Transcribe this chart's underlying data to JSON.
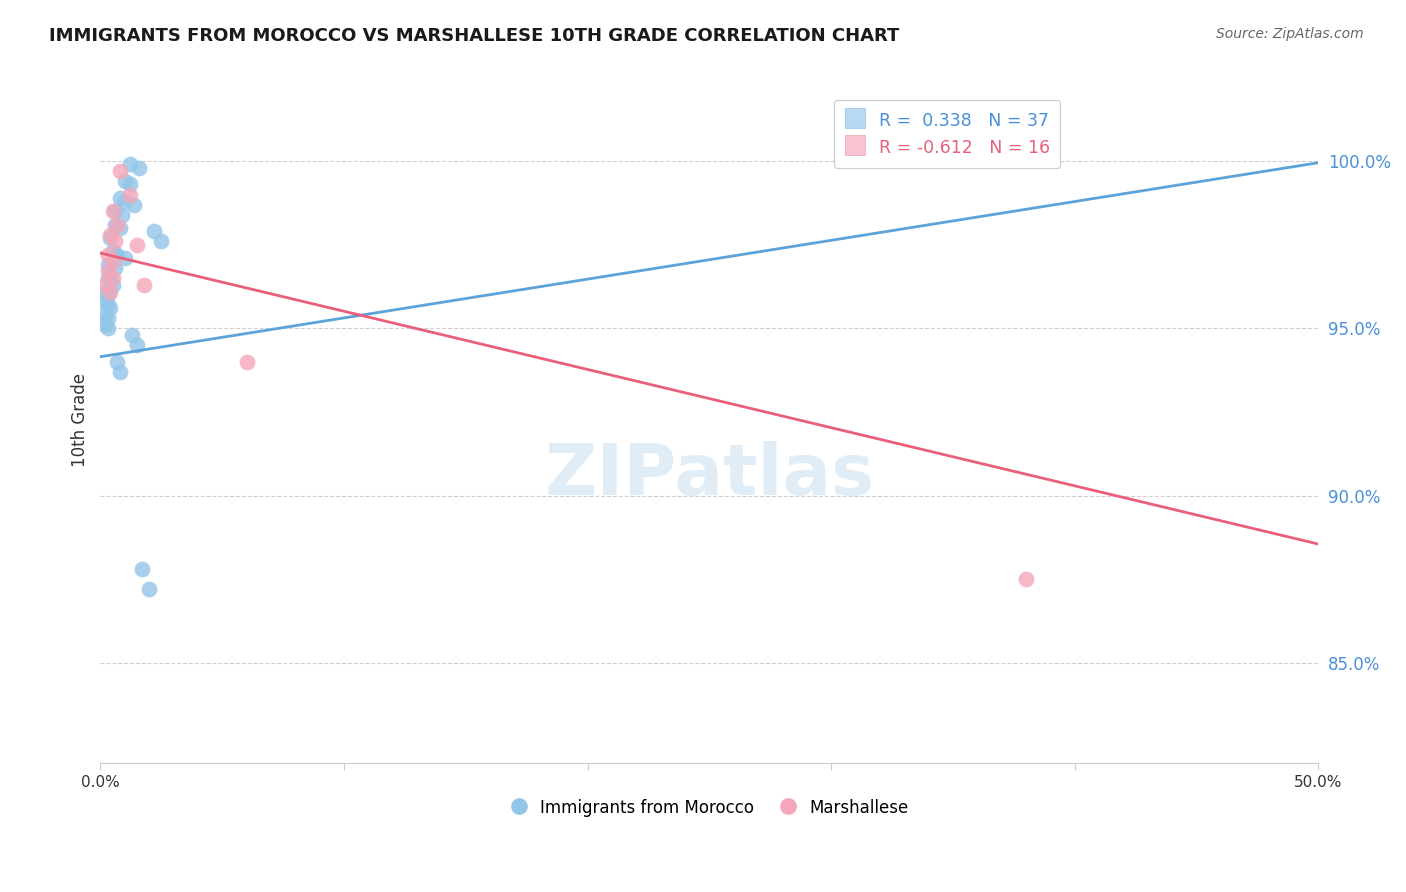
{
  "title": "IMMIGRANTS FROM MOROCCO VS MARSHALLESE 10TH GRADE CORRELATION CHART",
  "source": "Source: ZipAtlas.com",
  "ylabel": "10th Grade",
  "y_tick_values": [
    0.85,
    0.9,
    0.95,
    1.0
  ],
  "x_range": [
    0.0,
    0.5
  ],
  "y_range": [
    0.82,
    1.025
  ],
  "blue_color": "#92c5e8",
  "blue_line_color": "#5ba3d9",
  "pink_color": "#f4a7b9",
  "pink_line_color": "#e8607a",
  "legend_box_blue": "#b8d9f2",
  "legend_box_pink": "#f9c4d2",
  "watermark_text": "ZIPatlas",
  "blue_dots": [
    [
      0.012,
      0.999
    ],
    [
      0.016,
      0.998
    ],
    [
      0.01,
      0.994
    ],
    [
      0.012,
      0.993
    ],
    [
      0.008,
      0.989
    ],
    [
      0.01,
      0.988
    ],
    [
      0.014,
      0.987
    ],
    [
      0.006,
      0.985
    ],
    [
      0.009,
      0.984
    ],
    [
      0.006,
      0.981
    ],
    [
      0.008,
      0.98
    ],
    [
      0.022,
      0.979
    ],
    [
      0.004,
      0.977
    ],
    [
      0.025,
      0.976
    ],
    [
      0.005,
      0.973
    ],
    [
      0.007,
      0.972
    ],
    [
      0.01,
      0.971
    ],
    [
      0.003,
      0.969
    ],
    [
      0.006,
      0.968
    ],
    [
      0.003,
      0.965
    ],
    [
      0.004,
      0.964
    ],
    [
      0.005,
      0.963
    ],
    [
      0.002,
      0.961
    ],
    [
      0.003,
      0.96
    ],
    [
      0.002,
      0.958
    ],
    [
      0.003,
      0.957
    ],
    [
      0.004,
      0.956
    ],
    [
      0.002,
      0.954
    ],
    [
      0.003,
      0.953
    ],
    [
      0.002,
      0.951
    ],
    [
      0.003,
      0.95
    ],
    [
      0.013,
      0.948
    ],
    [
      0.015,
      0.945
    ],
    [
      0.007,
      0.94
    ],
    [
      0.008,
      0.937
    ],
    [
      0.017,
      0.878
    ],
    [
      0.02,
      0.872
    ]
  ],
  "pink_dots": [
    [
      0.008,
      0.997
    ],
    [
      0.012,
      0.99
    ],
    [
      0.005,
      0.985
    ],
    [
      0.007,
      0.981
    ],
    [
      0.004,
      0.978
    ],
    [
      0.006,
      0.976
    ],
    [
      0.015,
      0.975
    ],
    [
      0.003,
      0.972
    ],
    [
      0.005,
      0.97
    ],
    [
      0.003,
      0.967
    ],
    [
      0.005,
      0.965
    ],
    [
      0.002,
      0.963
    ],
    [
      0.004,
      0.961
    ],
    [
      0.018,
      0.963
    ],
    [
      0.06,
      0.94
    ],
    [
      0.38,
      0.875
    ]
  ],
  "blue_trend_x": [
    0.0,
    0.5
  ],
  "blue_trend_y": [
    0.9415,
    0.9995
  ],
  "pink_trend_x": [
    0.0,
    0.5
  ],
  "pink_trend_y": [
    0.9725,
    0.8855
  ]
}
